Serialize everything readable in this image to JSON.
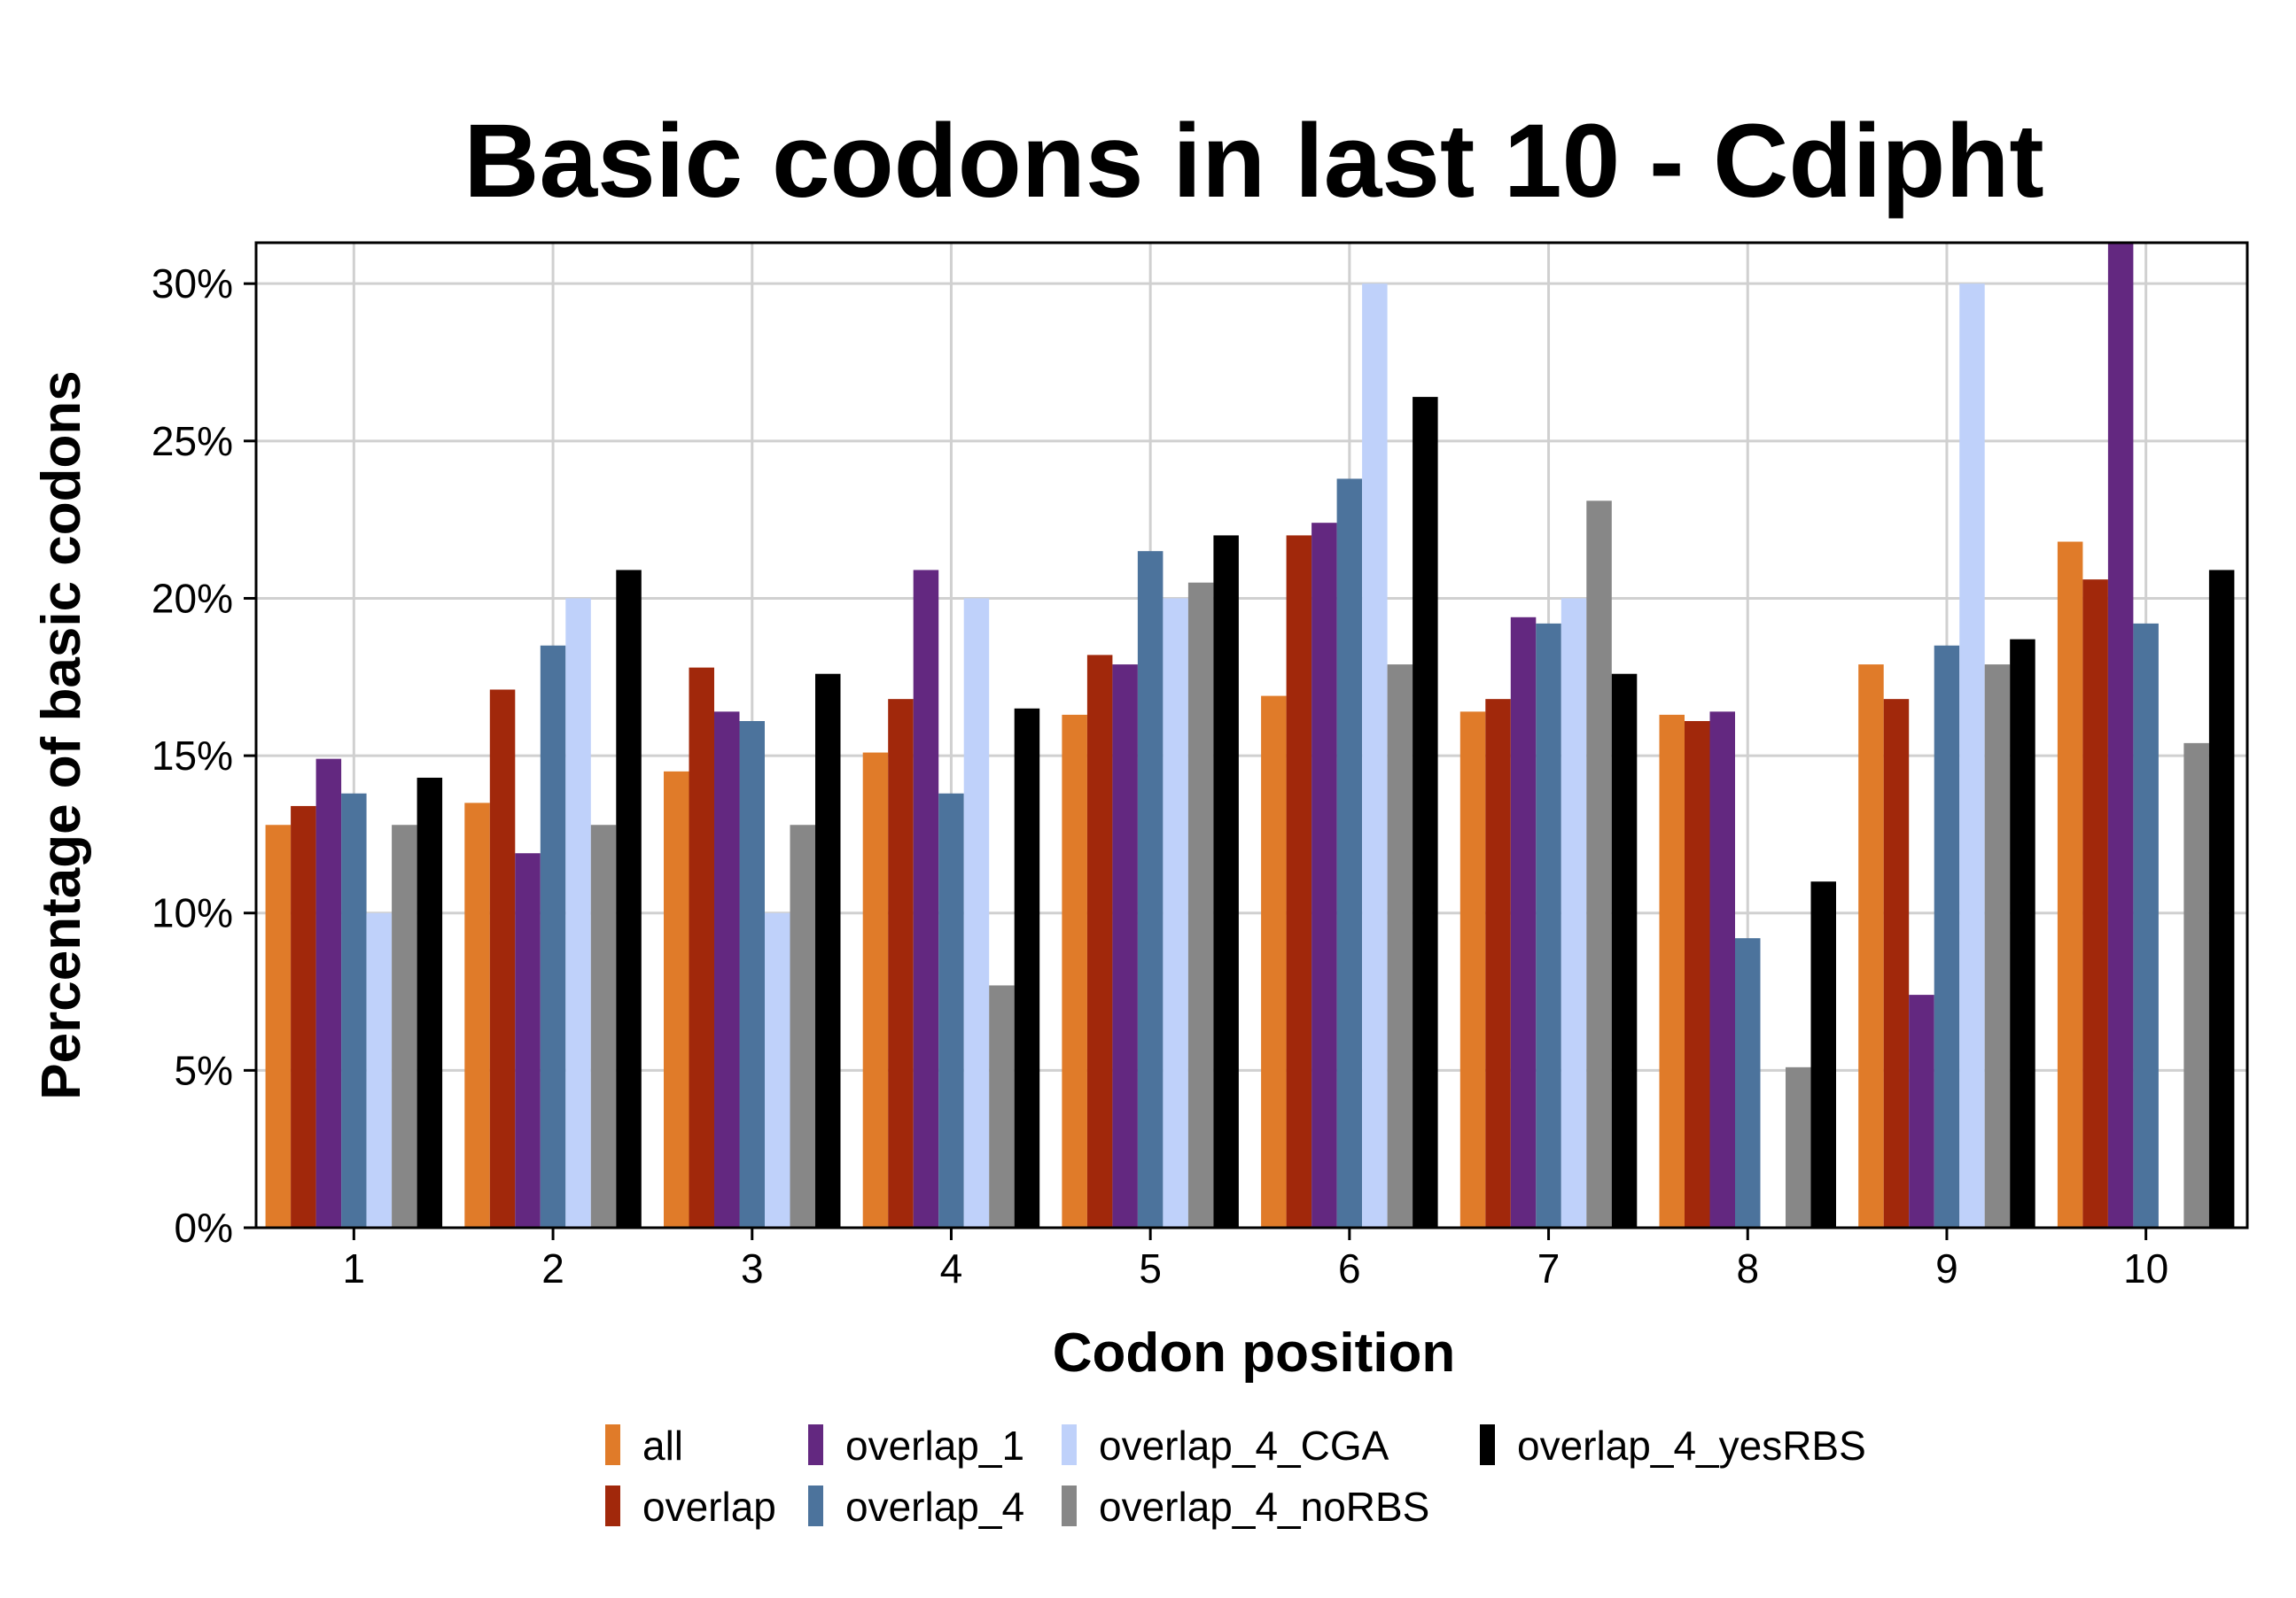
{
  "chart_data": {
    "type": "bar",
    "title": "Basic codons in last 10 - Cdipht",
    "xlabel": "Codon position",
    "ylabel": "Percentage of basic codons",
    "categories": [
      "1",
      "2",
      "3",
      "4",
      "5",
      "6",
      "7",
      "8",
      "9",
      "10"
    ],
    "ylim": [
      0,
      31.3
    ],
    "yticks": [
      0,
      5,
      10,
      15,
      20,
      25,
      30
    ],
    "ytick_labels": [
      "0%",
      "5%",
      "10%",
      "15%",
      "20%",
      "25%",
      "30%"
    ],
    "grid": true,
    "legend_position": "bottom",
    "series": [
      {
        "name": "all",
        "color": "#E07B29",
        "values": [
          12.8,
          13.5,
          14.5,
          15.1,
          16.3,
          16.9,
          16.4,
          16.3,
          17.9,
          21.8
        ]
      },
      {
        "name": "overlap",
        "color": "#A1280B",
        "values": [
          13.4,
          17.1,
          17.8,
          16.8,
          18.2,
          22.0,
          16.8,
          16.1,
          16.8,
          20.6
        ]
      },
      {
        "name": "overlap_1",
        "color": "#632880",
        "values": [
          14.9,
          11.9,
          16.4,
          20.9,
          17.9,
          22.4,
          19.4,
          16.4,
          7.4,
          31.3
        ]
      },
      {
        "name": "overlap_4",
        "color": "#4C739C",
        "values": [
          13.8,
          18.5,
          16.1,
          13.8,
          21.5,
          23.8,
          19.2,
          9.2,
          18.5,
          19.2
        ]
      },
      {
        "name": "overlap_4_CGA",
        "color": "#BFD1FA",
        "values": [
          10.0,
          20.0,
          10.0,
          20.0,
          20.0,
          30.0,
          20.0,
          0.0,
          30.0,
          0.0
        ]
      },
      {
        "name": "overlap_4_noRBS",
        "color": "#878787",
        "values": [
          12.8,
          12.8,
          12.8,
          7.7,
          20.5,
          17.9,
          23.1,
          5.1,
          17.9,
          15.4
        ]
      },
      {
        "name": "overlap_4_yesRBS",
        "color": "#000000",
        "values": [
          14.3,
          20.9,
          17.6,
          16.5,
          22.0,
          26.4,
          17.6,
          11.0,
          18.7,
          20.9
        ]
      }
    ]
  }
}
